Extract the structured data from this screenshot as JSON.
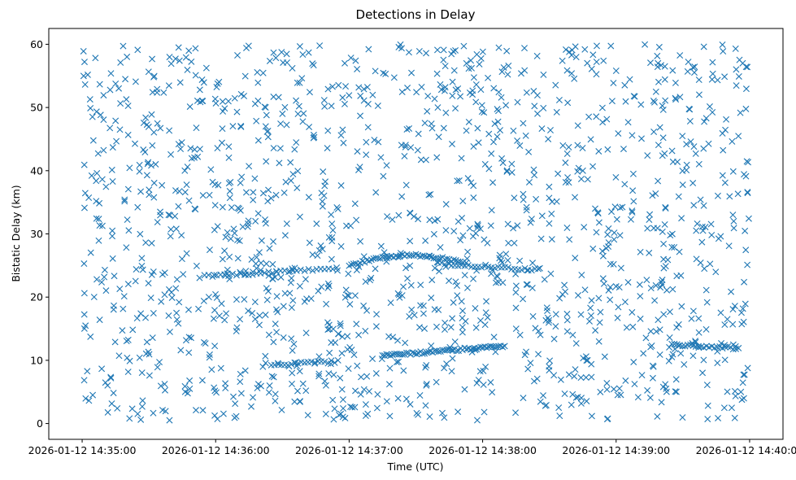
{
  "chart_data": {
    "type": "scatter",
    "title": "Detections in Delay",
    "xlabel": "Time (UTC)",
    "ylabel": "Bistatic Delay (km)",
    "marker": "x",
    "marker_color": "#1f77b4",
    "grid": false,
    "xlim": [
      "2026-01-12 14:34:45",
      "2026-01-12 14:40:15"
    ],
    "ylim": [
      -2.5,
      62.5
    ],
    "x_ticks": [
      "2026-01-12 14:35:00",
      "2026-01-12 14:36:00",
      "2026-01-12 14:37:00",
      "2026-01-12 14:38:00",
      "2026-01-12 14:39:00",
      "2026-01-12 14:40:00"
    ],
    "y_ticks": [
      0,
      10,
      20,
      30,
      40,
      50,
      60
    ],
    "time_range": [
      "2026-01-12 14:35:00",
      "2026-01-12 14:40:00"
    ],
    "delay_range": [
      0.5,
      60
    ],
    "clutter_points_shown": 1500,
    "tracks": [
      {
        "start": "2026-01-12 14:35:55",
        "end": "2026-01-12 14:36:55",
        "delay_start": 23.3,
        "delay_end": 24.5,
        "spacing_s": 1.8
      },
      {
        "start": "2026-01-12 14:37:00",
        "end": "2026-01-12 14:37:50",
        "delay_start": 25.0,
        "delay_end": 25.6,
        "curve_peak": 1.3,
        "spacing_s": 1.0
      },
      {
        "start": "2026-01-12 14:37:40",
        "end": "2026-01-12 14:38:25",
        "delay_start": 25.3,
        "delay_end": 24.3,
        "spacing_s": 1.5
      },
      {
        "start": "2026-01-12 14:36:25",
        "end": "2026-01-12 14:36:55",
        "delay_start": 9.3,
        "delay_end": 9.8,
        "spacing_s": 1.5
      },
      {
        "start": "2026-01-12 14:37:15",
        "end": "2026-01-12 14:38:10",
        "delay_start": 10.7,
        "delay_end": 12.3,
        "spacing_s": 0.9
      },
      {
        "start": "2026-01-12 14:39:25",
        "end": "2026-01-12 14:39:55",
        "delay_start": 12.5,
        "delay_end": 11.9,
        "spacing_s": 1.2
      }
    ]
  }
}
